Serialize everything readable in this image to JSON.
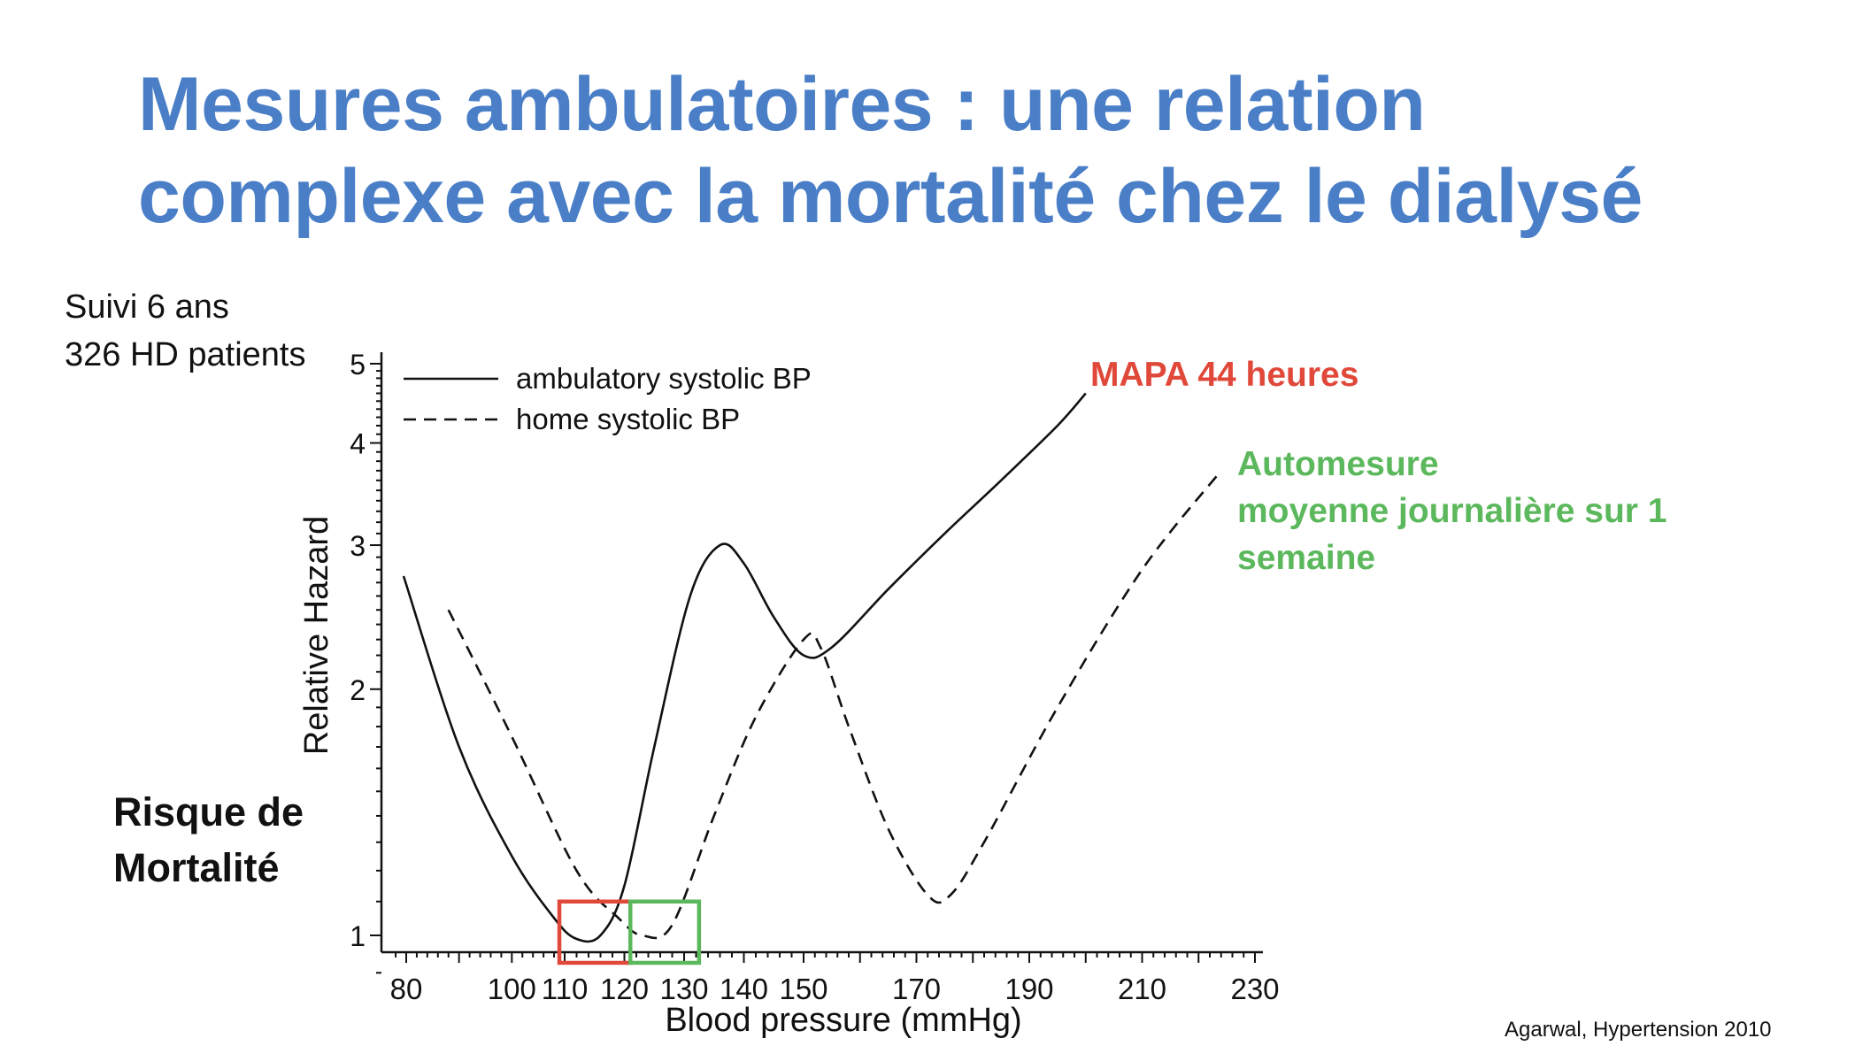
{
  "slide": {
    "title_line1": "Mesures ambulatoires : une relation",
    "title_line2": "complexe avec la mortalité chez le dialysé",
    "info_line1": "Suivi 6 ans",
    "info_line2": "326 HD patients",
    "risk_line1": "Risque de",
    "risk_line2": "Mortalité",
    "mapa_label": "MAPA 44 heures",
    "auto_line1": "Automesure",
    "auto_line2": "moyenne journalière sur 1",
    "auto_line3": "semaine",
    "citation": "Agarwal, Hypertension 2010"
  },
  "colors": {
    "title": "#4a7fc8",
    "mapa": "#e0483a",
    "auto": "#5cb85c",
    "curves": "#111111"
  },
  "chart_data": {
    "type": "line",
    "xlabel": "Blood pressure (mmHg)",
    "ylabel": "Relative Hazard",
    "y_scale": "log",
    "xlim": [
      78,
      232
    ],
    "ylim": [
      0.9,
      5.0
    ],
    "x_ticks": [
      80,
      100,
      110,
      120,
      130,
      140,
      150,
      170,
      190,
      210,
      230
    ],
    "y_ticks": [
      1,
      2,
      3,
      4,
      5
    ],
    "legend_position": "top-left",
    "series": [
      {
        "name": "ambulatory systolic BP",
        "style": "solid",
        "points": [
          [
            79.5,
            2.75
          ],
          [
            90,
            1.7
          ],
          [
            100,
            1.25
          ],
          [
            108,
            1.05
          ],
          [
            112,
            0.99
          ],
          [
            116,
            1.0
          ],
          [
            120,
            1.15
          ],
          [
            125,
            1.7
          ],
          [
            131,
            2.6
          ],
          [
            136,
            3.0
          ],
          [
            140,
            2.85
          ],
          [
            145,
            2.45
          ],
          [
            150,
            2.2
          ],
          [
            155,
            2.25
          ],
          [
            165,
            2.65
          ],
          [
            175,
            3.1
          ],
          [
            185,
            3.6
          ],
          [
            195,
            4.2
          ],
          [
            200,
            4.6
          ]
        ]
      },
      {
        "name": "home systolic BP",
        "style": "dashed",
        "points": [
          [
            88,
            2.5
          ],
          [
            100,
            1.75
          ],
          [
            112,
            1.2
          ],
          [
            119,
            1.05
          ],
          [
            123,
            1.0
          ],
          [
            128,
            1.03
          ],
          [
            135,
            1.4
          ],
          [
            142,
            1.85
          ],
          [
            150,
            2.3
          ],
          [
            153,
            2.25
          ],
          [
            158,
            1.8
          ],
          [
            165,
            1.35
          ],
          [
            172,
            1.12
          ],
          [
            176,
            1.12
          ],
          [
            182,
            1.3
          ],
          [
            195,
            1.9
          ],
          [
            210,
            2.8
          ],
          [
            224,
            3.7
          ]
        ]
      }
    ],
    "highlights": [
      {
        "label": "MAPA 44 heures",
        "color": "#e0483a",
        "x_range": [
          109,
          121
        ],
        "y_range": [
          0.9,
          1.1
        ]
      },
      {
        "label": "Automesure",
        "color": "#5cb85c",
        "x_range": [
          121,
          132.5
        ],
        "y_range": [
          0.9,
          1.1
        ]
      }
    ]
  }
}
